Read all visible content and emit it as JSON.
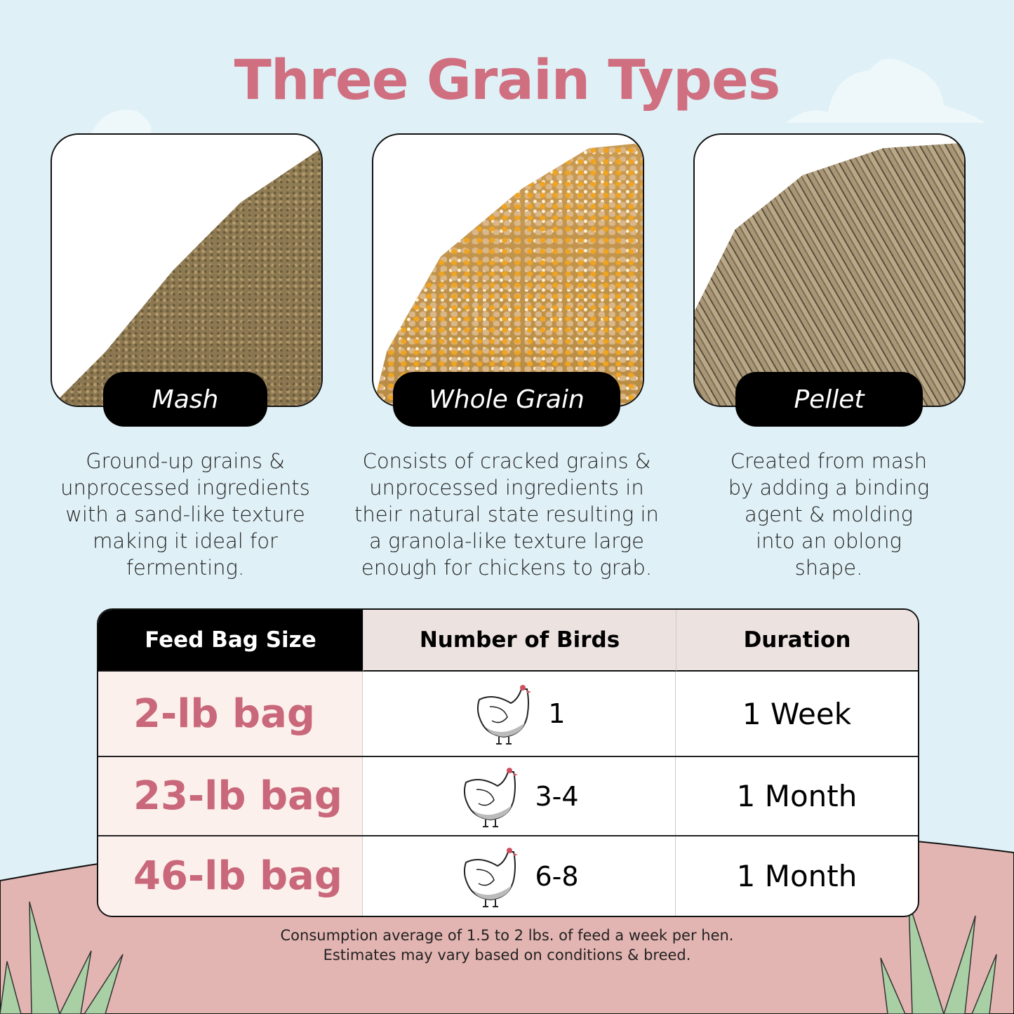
{
  "title": "Three Grain Types",
  "colors": {
    "background": "#dff0f6",
    "accent": "#d06f80",
    "ground": "#e3b5b2",
    "grass": "#a9cfa5"
  },
  "grain_types": [
    {
      "name": "Mash",
      "description": [
        "Ground-up grains &",
        "unprocessed ingredients",
        "with a sand-like texture",
        "making it ideal for",
        "fermenting."
      ]
    },
    {
      "name": "Whole Grain",
      "description": [
        "Consists of cracked grains &",
        "unprocessed ingredients in",
        "their natural state resulting in",
        "a granola-like texture large",
        "enough for chickens to grab."
      ]
    },
    {
      "name": "Pellet",
      "description": [
        "Created from mash",
        "by adding a binding",
        "agent & molding",
        "into an oblong",
        "shape."
      ]
    }
  ],
  "table": {
    "headers": [
      "Feed Bag Size",
      "Number of Birds",
      "Duration"
    ],
    "rows": [
      {
        "size": "2-lb bag",
        "birds": "1",
        "duration": "1 Week",
        "icon": "chicken-icon"
      },
      {
        "size": "23-lb bag",
        "birds": "3-4",
        "duration": "1 Month",
        "icon": "chicken-icon"
      },
      {
        "size": "46-lb bag",
        "birds": "6-8",
        "duration": "1 Month",
        "icon": "chicken-icon"
      }
    ]
  },
  "footnote": [
    "Consumption average of 1.5 to 2 lbs. of feed a week per hen.",
    "Estimates may vary based on conditions & breed."
  ]
}
